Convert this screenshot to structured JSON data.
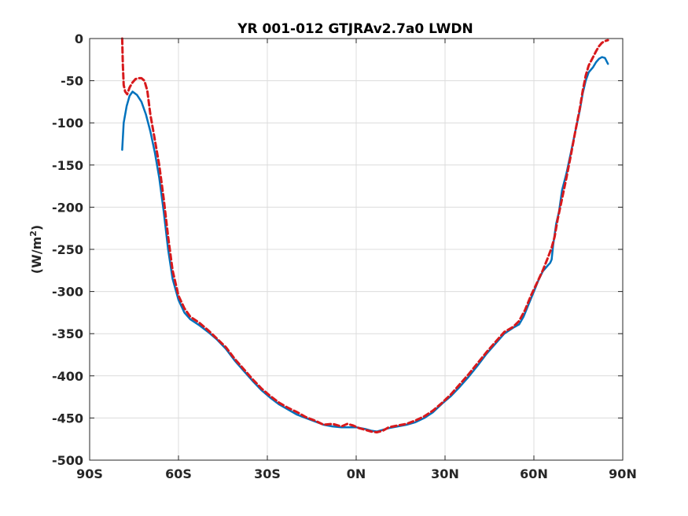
{
  "chart_data": {
    "type": "line",
    "title": "YR 001-012 GTJRAv2.7a0 LWDN",
    "ylabel_main": "(W/m",
    "ylabel_sup": "2",
    "ylabel_close": ")",
    "xlabel": "",
    "xlim": [
      -90,
      90
    ],
    "ylim": [
      -500,
      0
    ],
    "grid": true,
    "xticks": [
      {
        "value": -90,
        "label": "90S"
      },
      {
        "value": -60,
        "label": "60S"
      },
      {
        "value": -30,
        "label": "30S"
      },
      {
        "value": 0,
        "label": "0N"
      },
      {
        "value": 30,
        "label": "30N"
      },
      {
        "value": 60,
        "label": "60N"
      },
      {
        "value": 90,
        "label": "90N"
      }
    ],
    "yticks": [
      {
        "value": 0,
        "label": "0"
      },
      {
        "value": -50,
        "label": "-50"
      },
      {
        "value": -100,
        "label": "-100"
      },
      {
        "value": -150,
        "label": "-150"
      },
      {
        "value": -200,
        "label": "-200"
      },
      {
        "value": -250,
        "label": "-250"
      },
      {
        "value": -300,
        "label": "-300"
      },
      {
        "value": -350,
        "label": "-350"
      },
      {
        "value": -400,
        "label": "-400"
      },
      {
        "value": -450,
        "label": "-450"
      },
      {
        "value": -500,
        "label": "-500"
      }
    ],
    "series": [
      {
        "color": "#0072bd",
        "style": "solid",
        "points": [
          [
            -79,
            -132
          ],
          [
            -78.5,
            -100
          ],
          [
            -77.5,
            -80
          ],
          [
            -76.5,
            -68
          ],
          [
            -75.5,
            -63
          ],
          [
            -74,
            -67
          ],
          [
            -72.5,
            -75
          ],
          [
            -71,
            -90
          ],
          [
            -69.5,
            -110
          ],
          [
            -68,
            -135
          ],
          [
            -66.5,
            -165
          ],
          [
            -65,
            -205
          ],
          [
            -63.5,
            -250
          ],
          [
            -62,
            -285
          ],
          [
            -60,
            -310
          ],
          [
            -58,
            -325
          ],
          [
            -56,
            -333
          ],
          [
            -53,
            -340
          ],
          [
            -50,
            -348
          ],
          [
            -47,
            -357
          ],
          [
            -44,
            -368
          ],
          [
            -41,
            -382
          ],
          [
            -38,
            -394
          ],
          [
            -35,
            -406
          ],
          [
            -32,
            -417
          ],
          [
            -29,
            -426
          ],
          [
            -26,
            -434
          ],
          [
            -23,
            -440
          ],
          [
            -20,
            -446
          ],
          [
            -17,
            -450
          ],
          [
            -14,
            -454
          ],
          [
            -11,
            -458
          ],
          [
            -8,
            -460
          ],
          [
            -5,
            -461
          ],
          [
            -2,
            -461
          ],
          [
            0,
            -461
          ],
          [
            3,
            -463
          ],
          [
            5,
            -465
          ],
          [
            7,
            -466
          ],
          [
            9,
            -464
          ],
          [
            11,
            -462
          ],
          [
            14,
            -460
          ],
          [
            17,
            -458
          ],
          [
            20,
            -455
          ],
          [
            23,
            -450
          ],
          [
            26,
            -443
          ],
          [
            29,
            -433
          ],
          [
            32,
            -424
          ],
          [
            35,
            -413
          ],
          [
            38,
            -401
          ],
          [
            41,
            -388
          ],
          [
            44,
            -374
          ],
          [
            47,
            -362
          ],
          [
            50,
            -350
          ],
          [
            53,
            -343
          ],
          [
            55,
            -339
          ],
          [
            56.5,
            -330
          ],
          [
            58,
            -317
          ],
          [
            60,
            -300
          ],
          [
            61.5,
            -287
          ],
          [
            63,
            -276
          ],
          [
            64.5,
            -270
          ],
          [
            65.5,
            -266
          ],
          [
            66,
            -262
          ],
          [
            66.5,
            -245
          ],
          [
            67.5,
            -220
          ],
          [
            68.5,
            -205
          ],
          [
            69.5,
            -180
          ],
          [
            71,
            -160
          ],
          [
            72.5,
            -135
          ],
          [
            74,
            -110
          ],
          [
            75.5,
            -85
          ],
          [
            76.5,
            -65
          ],
          [
            77.5,
            -50
          ],
          [
            78.5,
            -40
          ],
          [
            80,
            -34
          ],
          [
            81,
            -28
          ],
          [
            82,
            -24
          ],
          [
            83,
            -22
          ],
          [
            84,
            -23
          ],
          [
            85,
            -30
          ]
        ]
      },
      {
        "color": "#d7191c",
        "style": "dashed",
        "points": [
          [
            -79,
            0
          ],
          [
            -78.8,
            -30
          ],
          [
            -78.5,
            -55
          ],
          [
            -78,
            -63
          ],
          [
            -77.3,
            -66
          ],
          [
            -76.5,
            -58
          ],
          [
            -75.5,
            -52
          ],
          [
            -74.5,
            -48
          ],
          [
            -73.5,
            -47
          ],
          [
            -72.5,
            -47
          ],
          [
            -71.5,
            -50
          ],
          [
            -70.5,
            -62
          ],
          [
            -69.5,
            -90
          ],
          [
            -68,
            -120
          ],
          [
            -66.5,
            -150
          ],
          [
            -65,
            -190
          ],
          [
            -63.5,
            -235
          ],
          [
            -62,
            -275
          ],
          [
            -60,
            -305
          ],
          [
            -58,
            -320
          ],
          [
            -56,
            -330
          ],
          [
            -53,
            -337
          ],
          [
            -50,
            -346
          ],
          [
            -47,
            -356
          ],
          [
            -44,
            -366
          ],
          [
            -41,
            -380
          ],
          [
            -38,
            -392
          ],
          [
            -35,
            -404
          ],
          [
            -32,
            -415
          ],
          [
            -29,
            -424
          ],
          [
            -26,
            -432
          ],
          [
            -23,
            -438
          ],
          [
            -20,
            -443
          ],
          [
            -17,
            -449
          ],
          [
            -14,
            -453
          ],
          [
            -11,
            -458
          ],
          [
            -8,
            -457
          ],
          [
            -5,
            -460
          ],
          [
            -3,
            -457
          ],
          [
            -1,
            -459
          ],
          [
            1,
            -462
          ],
          [
            3,
            -464
          ],
          [
            5,
            -466
          ],
          [
            7,
            -467
          ],
          [
            9,
            -465
          ],
          [
            11,
            -461
          ],
          [
            14,
            -459
          ],
          [
            17,
            -457
          ],
          [
            20,
            -453
          ],
          [
            23,
            -448
          ],
          [
            26,
            -441
          ],
          [
            29,
            -432
          ],
          [
            32,
            -422
          ],
          [
            35,
            -410
          ],
          [
            38,
            -398
          ],
          [
            41,
            -385
          ],
          [
            44,
            -372
          ],
          [
            47,
            -360
          ],
          [
            50,
            -348
          ],
          [
            53,
            -342
          ],
          [
            55,
            -335
          ],
          [
            57,
            -322
          ],
          [
            59,
            -305
          ],
          [
            61,
            -290
          ],
          [
            63,
            -275
          ],
          [
            64.5,
            -262
          ],
          [
            66,
            -248
          ],
          [
            67,
            -235
          ],
          [
            68,
            -215
          ],
          [
            69.5,
            -190
          ],
          [
            71,
            -165
          ],
          [
            72.5,
            -138
          ],
          [
            74,
            -110
          ],
          [
            75.5,
            -83
          ],
          [
            76.5,
            -62
          ],
          [
            77.5,
            -44
          ],
          [
            78.5,
            -32
          ],
          [
            80,
            -22
          ],
          [
            81,
            -15
          ],
          [
            82,
            -9
          ],
          [
            83,
            -5
          ],
          [
            84,
            -3
          ],
          [
            85,
            -2
          ]
        ]
      }
    ]
  }
}
